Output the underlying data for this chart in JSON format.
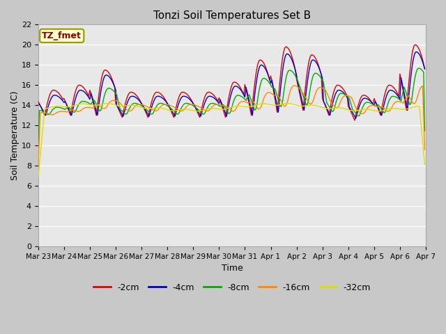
{
  "title": "Tonzi Soil Temperatures Set B",
  "xlabel": "Time",
  "ylabel": "Soil Temperature (C)",
  "ylim": [
    0,
    22
  ],
  "yticks": [
    0,
    2,
    4,
    6,
    8,
    10,
    12,
    14,
    16,
    18,
    20,
    22
  ],
  "fig_bg": "#c8c8c8",
  "plot_bg": "#e8e8e8",
  "annotation_text": "TZ_fmet",
  "annotation_color": "#8b0000",
  "annotation_bg": "#ffffcc",
  "annotation_edge": "#999900",
  "series_colors": [
    "#dd0000",
    "#0000cc",
    "#00aa00",
    "#ff8800",
    "#dddd00"
  ],
  "series_labels": [
    "-2cm",
    "-4cm",
    "-8cm",
    "-16cm",
    "-32cm"
  ],
  "x_tick_labels": [
    "Mar 23",
    "Mar 24",
    "Mar 25",
    "Mar 26",
    "Mar 27",
    "Mar 28",
    "Mar 29",
    "Mar 30",
    "Mar 31",
    "Apr 1",
    "Apr 2",
    "Apr 3",
    "Apr 4",
    "Apr 5",
    "Apr 6",
    "Apr 7"
  ],
  "x_tick_positions": [
    0,
    24,
    48,
    72,
    96,
    120,
    144,
    168,
    192,
    216,
    240,
    264,
    288,
    312,
    336,
    360
  ],
  "n_hours": 384,
  "hours_per_day": 24,
  "base_temp": 13.0
}
